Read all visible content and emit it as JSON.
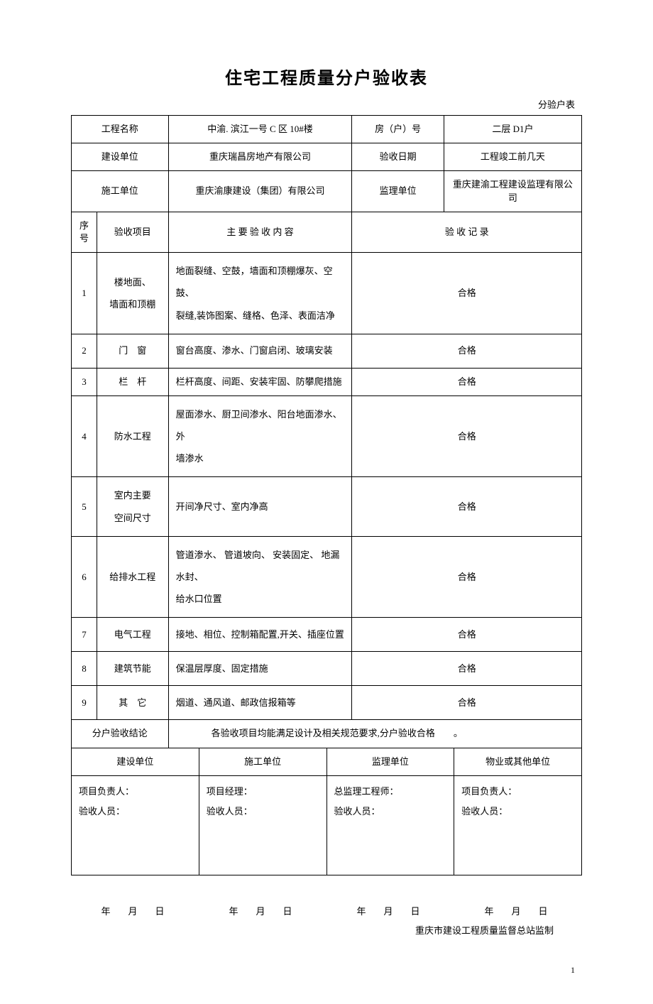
{
  "document": {
    "title": "住宅工程质量分户验收表",
    "subtitle": "分验户表",
    "dateUnit": "年　月　日",
    "footer": "重庆市建设工程质量监督总站监制",
    "pageNumber": "1"
  },
  "header": {
    "labels": {
      "projectName": "工程名称",
      "roomNumber": "房（户）号",
      "constructionUnit": "建设单位",
      "acceptanceDate": "验收日期",
      "contractor": "施工单位",
      "supervisor": "监理单位"
    },
    "values": {
      "projectName": "中渝. 滨江一号   C 区 10#楼",
      "roomNumber": "二层 D1户",
      "constructionUnit": "重庆瑞昌房地产有限公司",
      "acceptanceDate": "工程竣工前几天",
      "contractor": "重庆渝康建设（集团）有限公司",
      "supervisor": "重庆建渝工程建设监理有限公司"
    }
  },
  "columns": {
    "seq": "序号",
    "item": "验收项目",
    "content": "主 要  验 收 内 容",
    "record": "验 收 记 录"
  },
  "rows": [
    {
      "seq": "1",
      "item": "楼地面、\n墙面和顶棚",
      "content": "地面裂缝、空鼓，墙面和顶棚爆灰、空鼓、\n裂缝,装饰图案、缝格、色泽、表面洁净",
      "record": "合格"
    },
    {
      "seq": "2",
      "item": "门　窗",
      "content": "窗台高度、渗水、门窗启闭、玻璃安装",
      "record": "合格"
    },
    {
      "seq": "3",
      "item": "栏　杆",
      "content": "栏杆高度、间距、安装牢固、防攀爬措施",
      "record": "合格"
    },
    {
      "seq": "4",
      "item": "防水工程",
      "content": "屋面渗水、厨卫间渗水、阳台地面渗水、外\n墙渗水",
      "record": "合格"
    },
    {
      "seq": "5",
      "item": "室内主要\n空间尺寸",
      "content": "开间净尺寸、室内净高",
      "record": "合格"
    },
    {
      "seq": "6",
      "item": "给排水工程",
      "content": "管道渗水、 管道坡向、 安装固定、 地漏水封、\n给水口位置",
      "record": "合格"
    },
    {
      "seq": "7",
      "item": "电气工程",
      "content": "接地、相位、控制箱配置,开关、插座位置",
      "record": "合格"
    },
    {
      "seq": "8",
      "item": "建筑节能",
      "content": "保温层厚度、固定措施",
      "record": "合格"
    },
    {
      "seq": "9",
      "item": "其　它",
      "content": "烟道、通风道、邮政信报箱等",
      "record": "合格"
    }
  ],
  "conclusion": {
    "label": "分户验收结论",
    "value": "各验收项目均能满足设计及相关规范要求,分户验收合格　　。"
  },
  "signatures": {
    "headers": {
      "construction": "建设单位",
      "contractor": "施工单位",
      "supervisor": "监理单位",
      "property": "物业或其他单位"
    },
    "roles": {
      "projectLeader": "项目负责人：",
      "projectManager": "项目经理：",
      "chiefSupervisor": "总监理工程师：",
      "inspector": "验收人员："
    }
  }
}
